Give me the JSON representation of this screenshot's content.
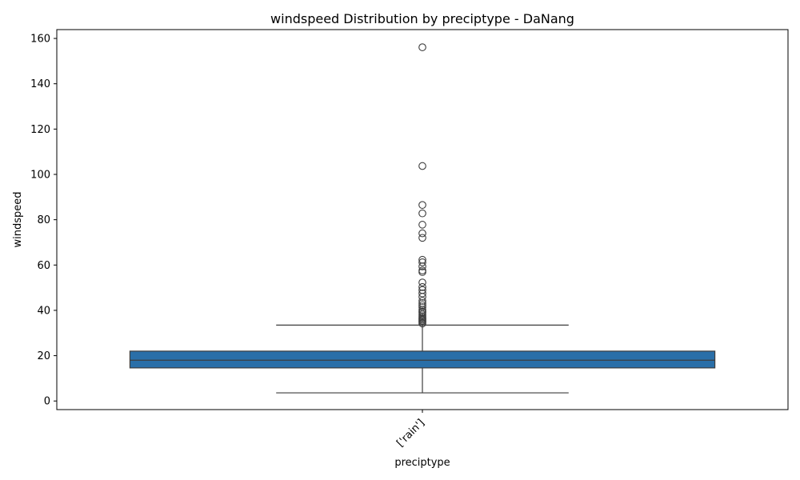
{
  "chart_data": {
    "type": "box",
    "title": "windspeed Distribution by preciptype - DaNang",
    "xlabel": "preciptype",
    "ylabel": "windspeed",
    "ylim": [
      -3.8,
      163.9
    ],
    "yticks": [
      0,
      20,
      40,
      60,
      80,
      100,
      120,
      140,
      160
    ],
    "categories": [
      "['rain']"
    ],
    "boxes": [
      {
        "category": "['rain']",
        "whisker_low": 3.6,
        "q1": 14.6,
        "median": 18.0,
        "q3": 22.0,
        "whisker_high": 33.5,
        "outliers": [
          34.2,
          34.8,
          35.3,
          35.8,
          36.3,
          36.8,
          37.4,
          38.2,
          39.0,
          39.6,
          40.3,
          41.4,
          42.3,
          43.2,
          44.2,
          46.0,
          47.5,
          49.0,
          50.3,
          52.3,
          56.9,
          57.6,
          59.4,
          61.2,
          62.3,
          72.0,
          74.0,
          77.8,
          82.8,
          86.5,
          103.7,
          156.1
        ]
      }
    ],
    "box_color": "#2a6fa8",
    "line_color": "#3d3d3d",
    "grid": false
  }
}
